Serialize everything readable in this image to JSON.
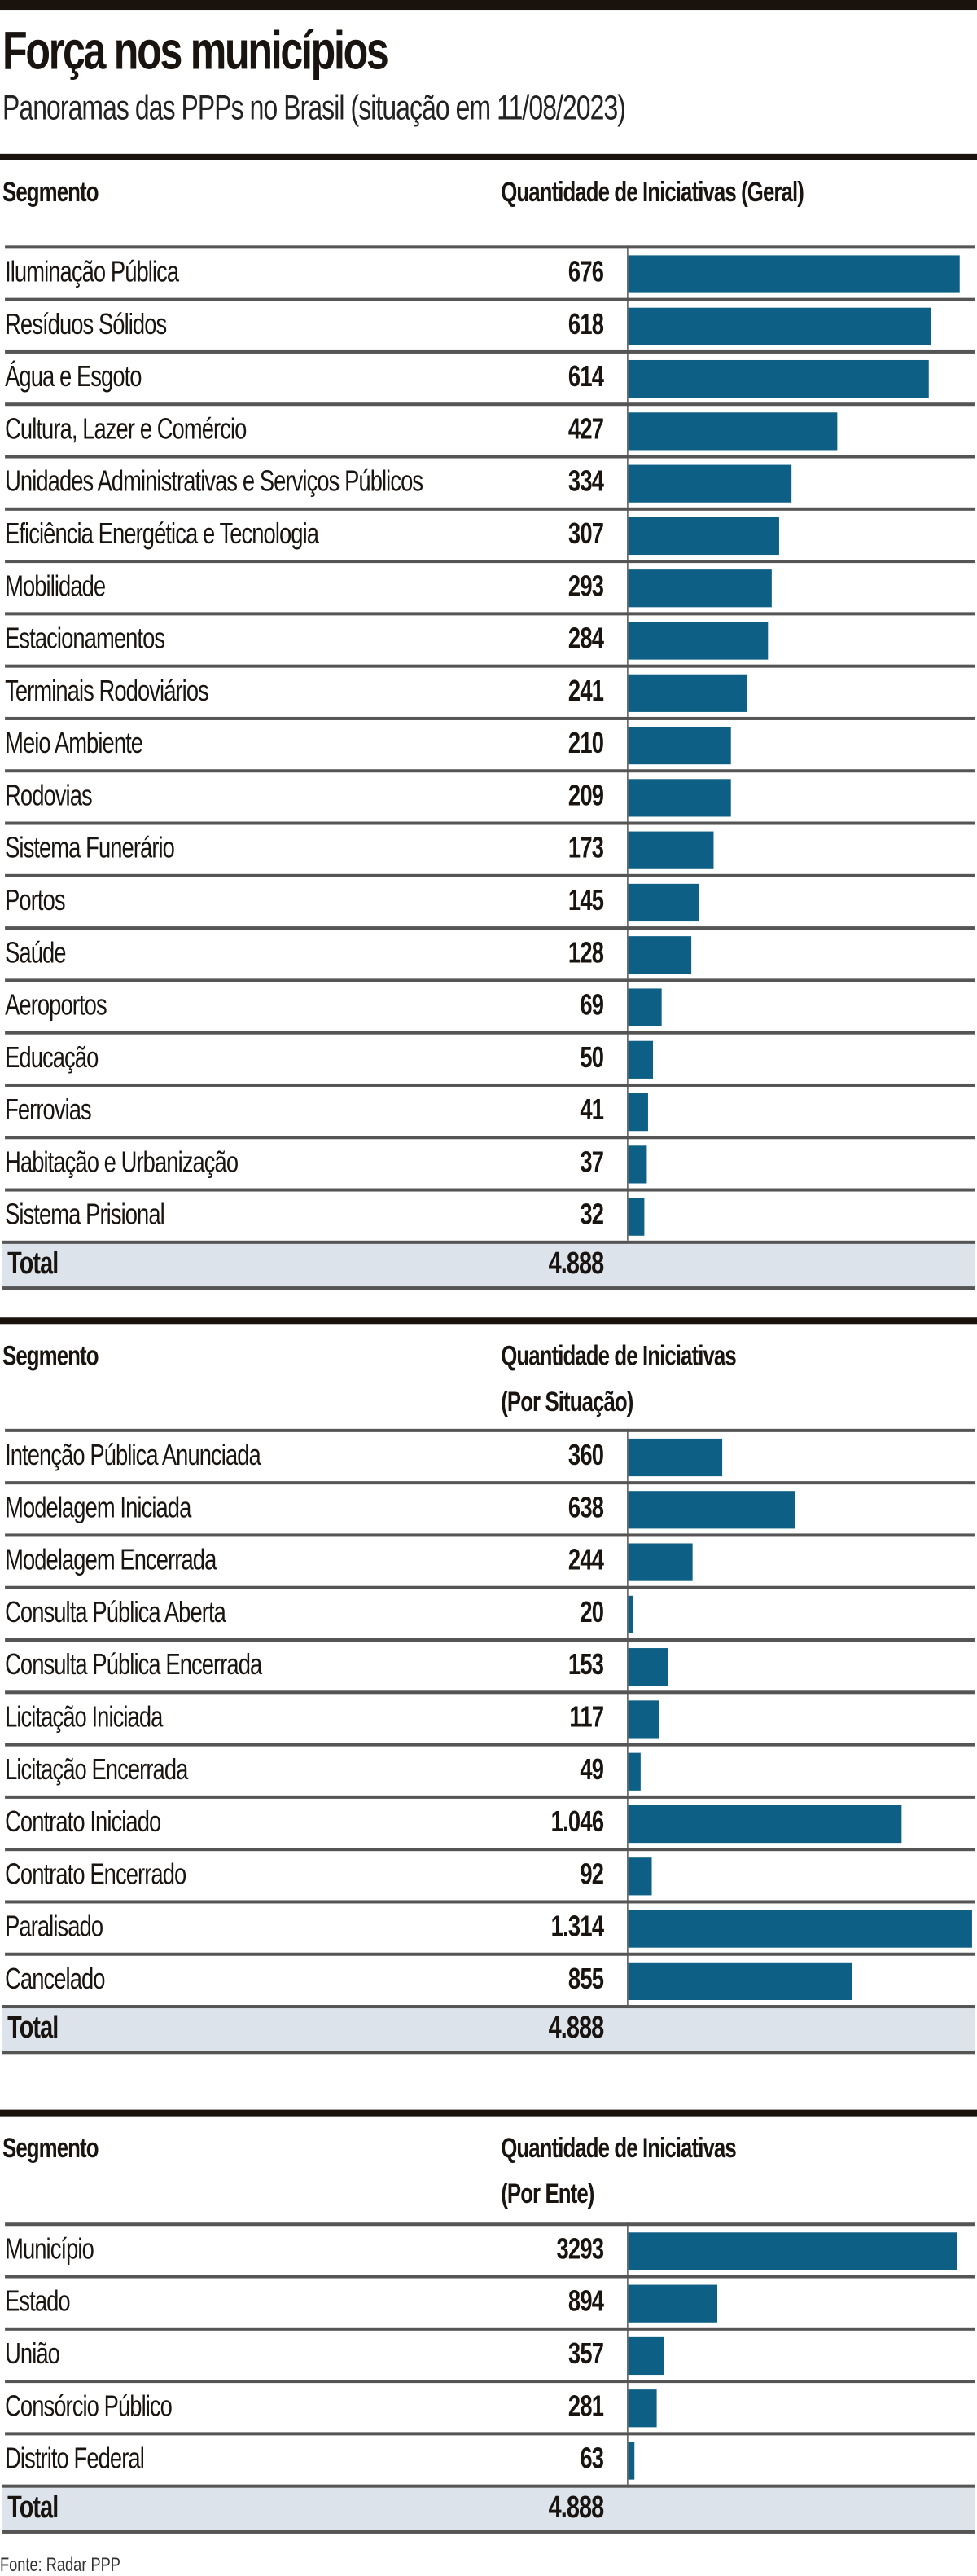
{
  "title": "Força nos municípios",
  "subtitle": "Panoramas das PPPs no Brasil (situação em 11/08/2023)",
  "source": "Fonte: Radar PPP",
  "colors": {
    "bar": "#0d5f86",
    "total_bg": "#dce3ea",
    "rule": "#1a120c"
  },
  "chart_data": [
    {
      "type": "bar",
      "orientation": "horizontal",
      "segment_header": "Segmento",
      "value_header": "Quantidade de Iniciativas (Geral)",
      "categories": [
        "Iluminação Pública",
        "Resíduos Sólidos",
        "Água e Esgoto",
        "Cultura, Lazer e Comércio",
        "Unidades Administrativas e Serviços Públicos",
        "Eficiência Energética e Tecnologia",
        "Mobilidade",
        "Estacionamentos",
        "Terminais Rodoviários",
        "Meio Ambiente",
        "Rodovias",
        "Sistema Funerário",
        "Portos",
        "Saúde",
        "Aeroportos",
        "Educação",
        "Ferrovias",
        "Habitação e Urbanização",
        "Sistema Prisional"
      ],
      "values": [
        676,
        618,
        614,
        427,
        334,
        307,
        293,
        284,
        241,
        210,
        209,
        173,
        145,
        128,
        69,
        50,
        41,
        37,
        32
      ],
      "labels": [
        "676",
        "618",
        "614",
        "427",
        "334",
        "307",
        "293",
        "284",
        "241",
        "210",
        "209",
        "173",
        "145",
        "128",
        "69",
        "50",
        "41",
        "37",
        "32"
      ],
      "total_label": "Total",
      "total": "4.888"
    },
    {
      "type": "bar",
      "orientation": "horizontal",
      "segment_header": "Segmento",
      "value_header": "Quantidade de Iniciativas",
      "value_header2": "(Por Situação)",
      "categories": [
        "Intenção Pública Anunciada",
        "Modelagem Iniciada",
        "Modelagem Encerrada",
        "Consulta Pública Aberta",
        "Consulta Pública Encerrada",
        "Licitação Iniciada",
        "Licitação Encerrada",
        "Contrato Iniciado",
        "Contrato Encerrado",
        "Paralisado",
        "Cancelado"
      ],
      "values": [
        360,
        638,
        244,
        20,
        153,
        117,
        49,
        1046,
        92,
        1314,
        855
      ],
      "labels": [
        "360",
        "638",
        "244",
        "20",
        "153",
        "117",
        "49",
        "1.046",
        "92",
        "1.314",
        "855"
      ],
      "total_label": "Total",
      "total": "4.888"
    },
    {
      "type": "bar",
      "orientation": "horizontal",
      "segment_header": "Segmento",
      "value_header": "Quantidade de Iniciativas",
      "value_header2": "(Por Ente)",
      "categories": [
        "Município",
        "Estado",
        "União",
        "Consórcio Público",
        "Distrito Federal"
      ],
      "values": [
        3293,
        894,
        357,
        281,
        63
      ],
      "labels": [
        "3293",
        "894",
        "357",
        "281",
        "63"
      ],
      "total_label": "Total",
      "total": "4.888"
    }
  ]
}
